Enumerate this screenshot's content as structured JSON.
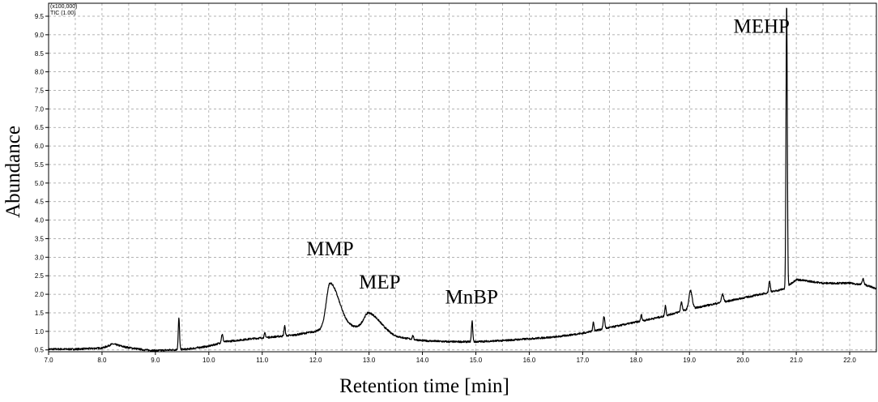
{
  "chart_data": {
    "type": "line",
    "xlabel": "Retention time [min]",
    "ylabel": "Abundance",
    "scale_note": "(x100,000)",
    "trace_label": "TIC (1.00)",
    "xlim": [
      7.0,
      22.5
    ],
    "ylim": [
      0.45,
      9.85
    ],
    "x_ticks": [
      "7.0",
      "8.0",
      "9.0",
      "10.0",
      "11.0",
      "12.0",
      "13.0",
      "14.0",
      "15.0",
      "16.0",
      "17.0",
      "18.0",
      "19.0",
      "20.0",
      "21.0",
      "22.0"
    ],
    "y_ticks": [
      "0.5",
      "1.0",
      "1.5",
      "2.0",
      "2.5",
      "3.0",
      "3.5",
      "4.0",
      "4.5",
      "5.0",
      "5.5",
      "6.0",
      "6.5",
      "7.0",
      "7.5",
      "8.0",
      "8.5",
      "9.0",
      "9.5"
    ],
    "grid": true,
    "baseline": [
      [
        7.0,
        0.52
      ],
      [
        7.5,
        0.52
      ],
      [
        8.0,
        0.55
      ],
      [
        8.2,
        0.64
      ],
      [
        8.4,
        0.58
      ],
      [
        8.8,
        0.5
      ],
      [
        9.0,
        0.48
      ],
      [
        9.3,
        0.5
      ],
      [
        9.6,
        0.52
      ],
      [
        10.0,
        0.6
      ],
      [
        10.3,
        0.72
      ],
      [
        10.8,
        0.8
      ],
      [
        11.2,
        0.85
      ],
      [
        11.6,
        0.9
      ],
      [
        12.0,
        1.0
      ],
      [
        12.25,
        1.1
      ],
      [
        12.6,
        1.1
      ],
      [
        12.9,
        1.1
      ],
      [
        13.5,
        0.85
      ],
      [
        14.0,
        0.75
      ],
      [
        14.5,
        0.72
      ],
      [
        15.0,
        0.72
      ],
      [
        15.5,
        0.75
      ],
      [
        16.0,
        0.8
      ],
      [
        16.5,
        0.85
      ],
      [
        17.0,
        0.95
      ],
      [
        17.5,
        1.1
      ],
      [
        18.0,
        1.25
      ],
      [
        18.5,
        1.4
      ],
      [
        19.0,
        1.6
      ],
      [
        19.5,
        1.75
      ],
      [
        20.0,
        1.9
      ],
      [
        20.5,
        2.05
      ],
      [
        20.78,
        2.15
      ],
      [
        21.0,
        2.4
      ],
      [
        21.5,
        2.3
      ],
      [
        22.0,
        2.3
      ],
      [
        22.3,
        2.25
      ],
      [
        22.5,
        2.15
      ]
    ],
    "peaks": [
      {
        "rt": 8.2,
        "apex": 0.66,
        "width": 0.06
      },
      {
        "rt": 9.44,
        "apex": 1.35,
        "width": 0.012
      },
      {
        "rt": 10.25,
        "apex": 0.92,
        "width": 0.015
      },
      {
        "rt": 11.05,
        "apex": 0.95,
        "width": 0.012
      },
      {
        "rt": 11.42,
        "apex": 1.15,
        "width": 0.012
      },
      {
        "rt": 12.27,
        "apex": 2.3,
        "width": 0.07
      },
      {
        "rt": 13.0,
        "apex": 1.5,
        "width": 0.09
      },
      {
        "rt": 13.82,
        "apex": 0.88,
        "width": 0.012
      },
      {
        "rt": 14.93,
        "apex": 1.28,
        "width": 0.012
      },
      {
        "rt": 17.2,
        "apex": 1.25,
        "width": 0.012
      },
      {
        "rt": 17.4,
        "apex": 1.4,
        "width": 0.015
      },
      {
        "rt": 18.1,
        "apex": 1.45,
        "width": 0.012
      },
      {
        "rt": 18.55,
        "apex": 1.7,
        "width": 0.012
      },
      {
        "rt": 18.85,
        "apex": 1.8,
        "width": 0.015
      },
      {
        "rt": 19.02,
        "apex": 2.1,
        "width": 0.03
      },
      {
        "rt": 19.62,
        "apex": 2.0,
        "width": 0.02
      },
      {
        "rt": 20.5,
        "apex": 2.35,
        "width": 0.015
      },
      {
        "rt": 20.82,
        "apex": 9.85,
        "width": 0.012
      },
      {
        "rt": 22.25,
        "apex": 2.42,
        "width": 0.015
      }
    ],
    "annotations": [
      {
        "text": "MMP",
        "rt": 12.27,
        "y": 3.05
      },
      {
        "text": "MEP",
        "rt": 13.2,
        "y": 2.15
      },
      {
        "text": "MnBP",
        "rt": 14.92,
        "y": 1.75
      },
      {
        "text": "MEHP",
        "rt": 20.35,
        "y": 9.05
      }
    ],
    "line_color": "#000000",
    "grid_color": "#9a9a9a"
  }
}
